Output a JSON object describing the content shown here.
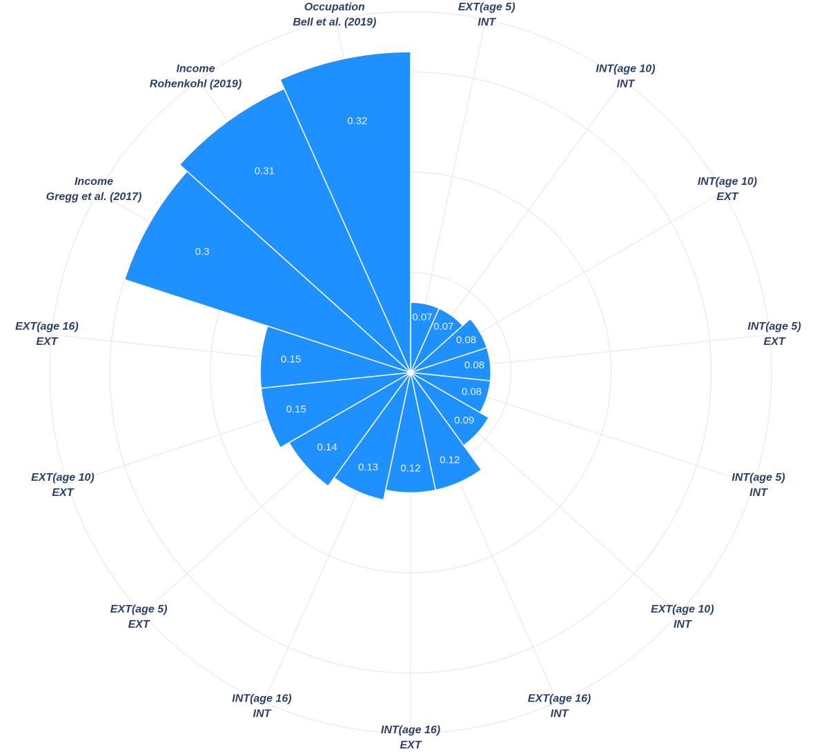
{
  "chart_data": {
    "type": "polar-bar",
    "categories": [
      [
        "EXT(age 5)",
        "INT"
      ],
      [
        "INT(age 10)",
        "INT"
      ],
      [
        "INT(age 10)",
        "EXT"
      ],
      [
        "INT(age 5)",
        "EXT"
      ],
      [
        "INT(age 5)",
        "INT"
      ],
      [
        "EXT(age 10)",
        "INT"
      ],
      [
        "EXT(age 16)",
        "INT"
      ],
      [
        "INT(age 16)",
        "EXT"
      ],
      [
        "INT(age 16)",
        "INT"
      ],
      [
        "EXT(age 5)",
        "EXT"
      ],
      [
        "EXT(age 10)",
        "EXT"
      ],
      [
        "EXT(age 16)",
        "EXT"
      ],
      [
        "Income",
        "Gregg et al. (2017)"
      ],
      [
        "Income",
        "Rohenkohl (2019)"
      ],
      [
        "Occupation",
        "Bell et al. (2019)"
      ]
    ],
    "values": [
      0.07,
      0.07,
      0.08,
      0.08,
      0.08,
      0.09,
      0.12,
      0.12,
      0.13,
      0.14,
      0.15,
      0.15,
      0.3,
      0.31,
      0.32
    ],
    "color": "#1e90ff",
    "rlim": [
      0,
      0.36
    ],
    "rticks": [
      0.1,
      0.2,
      0.3,
      0.36
    ],
    "grid": true
  }
}
